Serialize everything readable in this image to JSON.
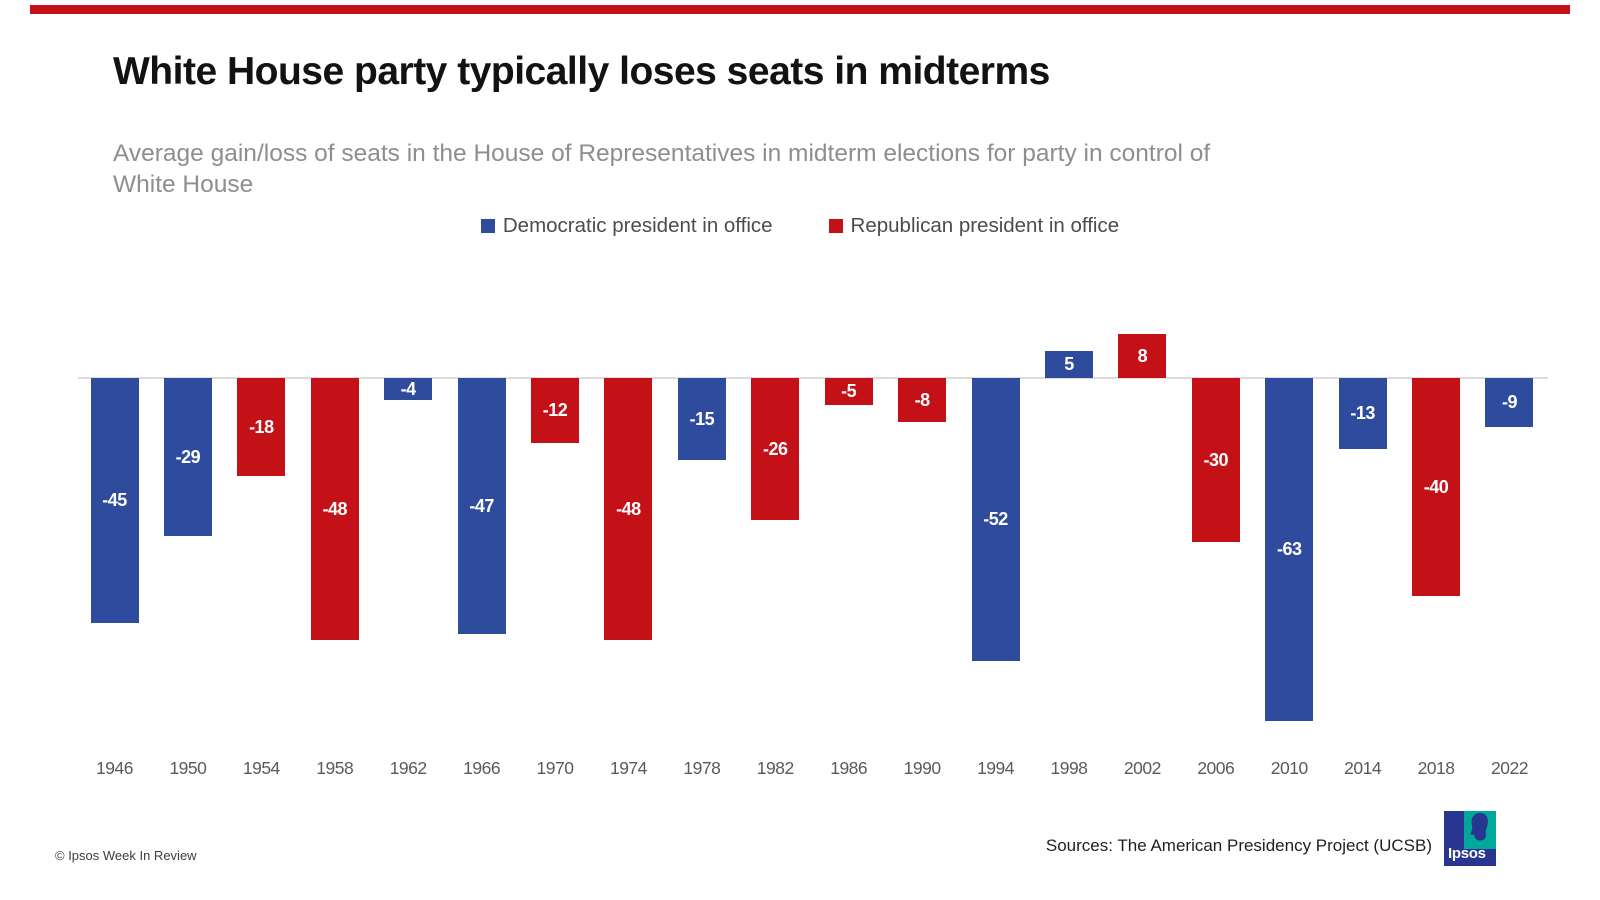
{
  "accent_bar_color": "#C41017",
  "header": {
    "title": "White House party typically loses seats in midterms",
    "subtitle_lines": [
      "Average gain/loss of seats in the House of Representatives in midterm elections for party in control of",
      "White House"
    ]
  },
  "legend": {
    "items": [
      {
        "label": "Democratic president in office",
        "party": "D"
      },
      {
        "label": "Republican president in office",
        "party": "R"
      }
    ]
  },
  "chart_data": {
    "type": "bar",
    "title": "White House party typically loses seats in midterms",
    "subtitle": "Average gain/loss of seats in the House of Representatives in midterm elections for party in control of White House",
    "categories": [
      "1946",
      "1950",
      "1954",
      "1958",
      "1962",
      "1966",
      "1970",
      "1974",
      "1978",
      "1982",
      "1986",
      "1990",
      "1994",
      "1998",
      "2002",
      "2006",
      "2010",
      "2014",
      "2018",
      "2022"
    ],
    "values": [
      -45,
      -29,
      -18,
      -48,
      -4,
      -47,
      -12,
      -48,
      -15,
      -26,
      -5,
      -8,
      -52,
      5,
      8,
      -30,
      -63,
      -13,
      -40,
      -9
    ],
    "parties": [
      "D",
      "D",
      "R",
      "R",
      "D",
      "D",
      "R",
      "R",
      "D",
      "R",
      "R",
      "R",
      "D",
      "D",
      "R",
      "R",
      "D",
      "D",
      "R",
      "D"
    ],
    "colors": {
      "D": "#2F4B9D",
      "R": "#C41017"
    },
    "bar_label_color": "#ffffff",
    "xlabel": "",
    "ylim": [
      -70,
      15
    ],
    "grid": false,
    "legend_position": "top"
  },
  "footer": {
    "copyright": "© Ipsos Week In Review",
    "sources": "Sources: The American Presidency Project (UCSB)",
    "logo": {
      "text": "Ipsos",
      "teal": "#00A79B",
      "blue": "#283691"
    }
  }
}
